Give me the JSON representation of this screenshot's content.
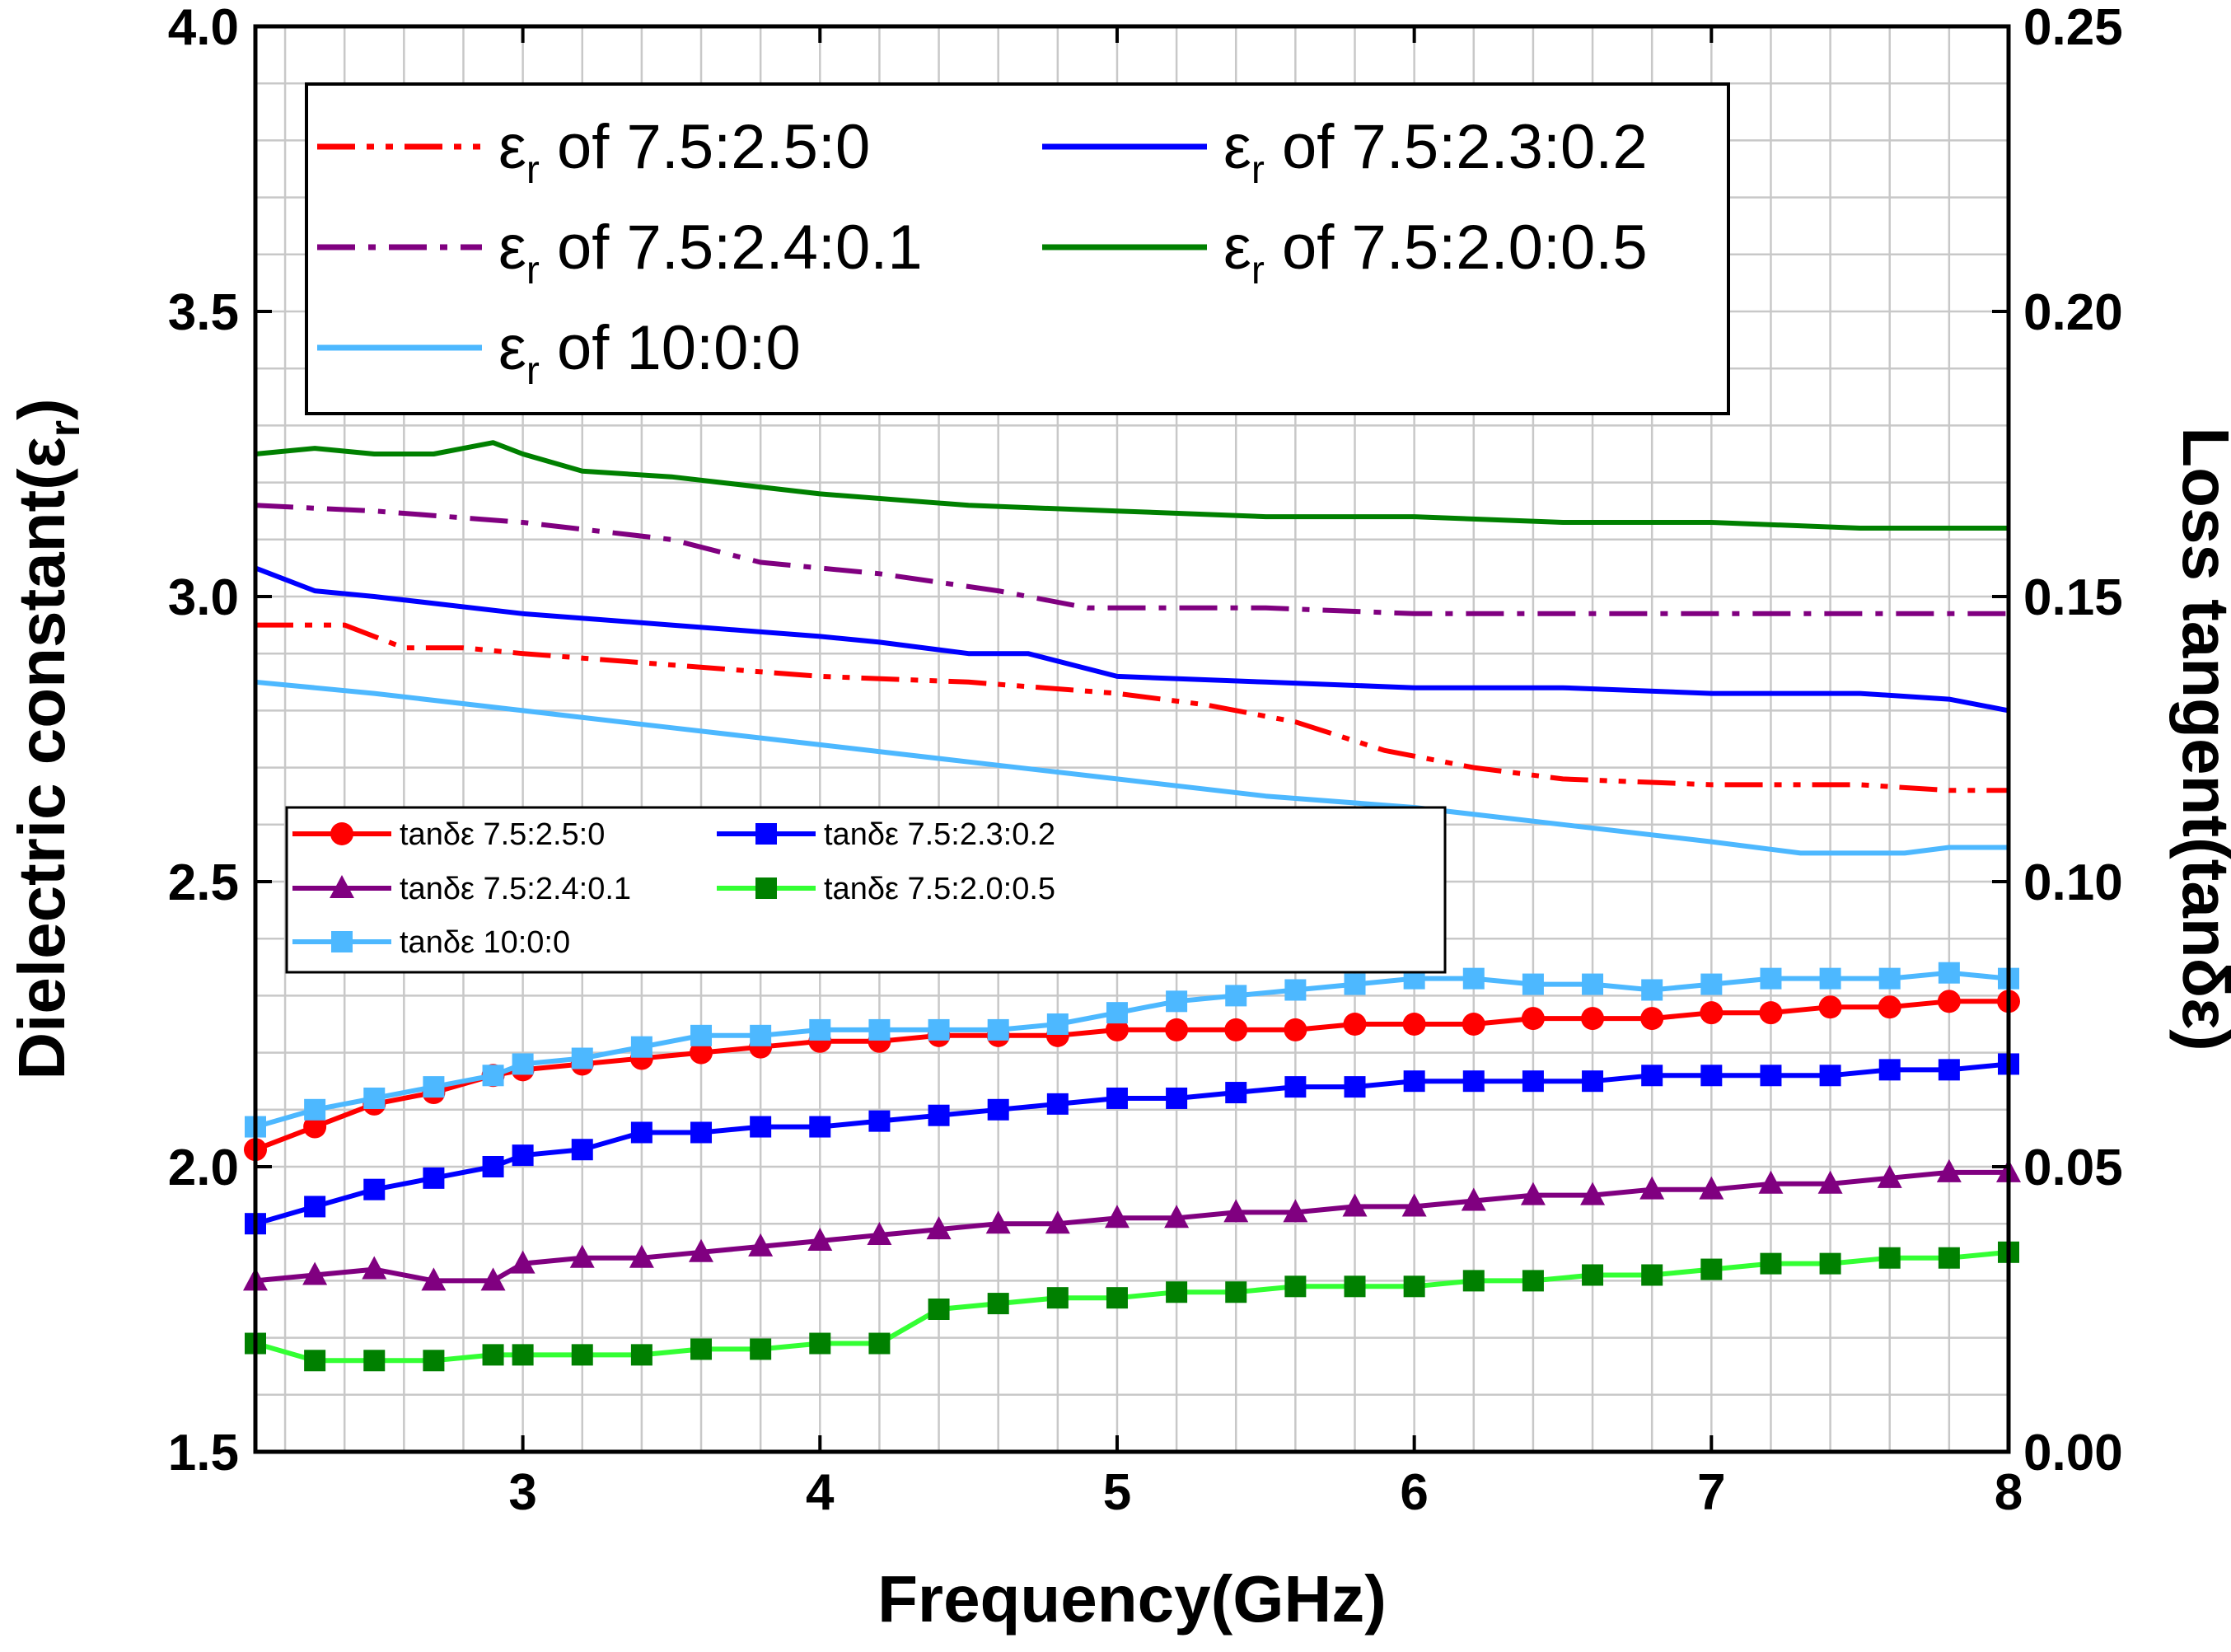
{
  "chart_data": {
    "type": "line",
    "xlabel": "Frequency(GHz)",
    "ylabel": "Dielectric constant(εr)",
    "ylabel_main": "Dielectric constant(ε",
    "ylabel_sub": "r",
    "ylabel_tail": ")",
    "y2label": "Loss tangent(tanδε)",
    "xlim": [
      2.1,
      8
    ],
    "ylim": [
      1.5,
      4.0
    ],
    "y2lim": [
      0.0,
      0.25
    ],
    "x_ticks": [
      3,
      4,
      5,
      6,
      7,
      8
    ],
    "x_tick_labels": [
      "3",
      "4",
      "5",
      "6",
      "7",
      "8"
    ],
    "y_ticks": [
      1.5,
      2.0,
      2.5,
      3.0,
      3.5,
      4.0
    ],
    "y_tick_labels": [
      "1.5",
      "2.0",
      "2.5",
      "3.0",
      "3.5",
      "4.0"
    ],
    "y2_ticks": [
      0.0,
      0.05,
      0.1,
      0.15,
      0.2,
      0.25
    ],
    "y2_tick_labels": [
      "0.00",
      "0.05",
      "0.10",
      "0.15",
      "0.20",
      "0.25"
    ],
    "grid": true,
    "series": [
      {
        "id": "er1",
        "axis": "left",
        "name": "εr of  7.5:2.5:0",
        "legend_pre": "ε",
        "legend_sub": "r",
        "legend_post": " of  7.5:2.5:0",
        "color": "#ff0000",
        "dash": "dashdotdot",
        "marker": "none",
        "x": [
          2.1,
          2.4,
          2.6,
          2.8,
          3.0,
          3.5,
          4.0,
          4.5,
          5.0,
          5.3,
          5.6,
          5.9,
          6.2,
          6.5,
          7.0,
          7.5,
          7.8,
          8.0
        ],
        "y": [
          2.95,
          2.95,
          2.91,
          2.91,
          2.9,
          2.88,
          2.86,
          2.85,
          2.83,
          2.81,
          2.78,
          2.73,
          2.7,
          2.68,
          2.67,
          2.67,
          2.66,
          2.66
        ]
      },
      {
        "id": "er2",
        "axis": "left",
        "name": "εr of 7.5:2.3:0.2",
        "legend_pre": "ε",
        "legend_sub": "r",
        "legend_post": " of 7.5:2.3:0.2",
        "color": "#0000ff",
        "dash": "solid",
        "marker": "none",
        "x": [
          2.1,
          2.3,
          2.5,
          3.0,
          3.5,
          4.0,
          4.2,
          4.5,
          4.7,
          5.0,
          5.5,
          6.0,
          6.5,
          7.0,
          7.5,
          7.8,
          8.0
        ],
        "y": [
          3.05,
          3.01,
          3.0,
          2.97,
          2.95,
          2.93,
          2.92,
          2.9,
          2.9,
          2.86,
          2.85,
          2.84,
          2.84,
          2.83,
          2.83,
          2.82,
          2.8
        ]
      },
      {
        "id": "er3",
        "axis": "left",
        "name": "εr of  7.5:2.4:0.1",
        "legend_pre": "ε",
        "legend_sub": "r",
        "legend_post": " of  7.5:2.4:0.1",
        "color": "#800080",
        "dash": "dashdot",
        "marker": "none",
        "x": [
          2.1,
          2.5,
          3.0,
          3.5,
          3.8,
          4.2,
          4.6,
          4.9,
          5.5,
          6.0,
          6.5,
          7.0,
          7.5,
          8.0
        ],
        "y": [
          3.16,
          3.15,
          3.13,
          3.1,
          3.06,
          3.04,
          3.01,
          2.98,
          2.98,
          2.97,
          2.97,
          2.97,
          2.97,
          2.97
        ]
      },
      {
        "id": "er4",
        "axis": "left",
        "name": "εr of 7.5:2.0:0.5",
        "legend_pre": "ε",
        "legend_sub": "r",
        "legend_post": " of 7.5:2.0:0.5",
        "color": "#008000",
        "dash": "solid",
        "marker": "none",
        "x": [
          2.1,
          2.3,
          2.5,
          2.7,
          2.9,
          3.0,
          3.2,
          3.5,
          4.0,
          4.5,
          5.0,
          5.5,
          6.0,
          6.5,
          7.0,
          7.5,
          8.0
        ],
        "y": [
          3.25,
          3.26,
          3.25,
          3.25,
          3.27,
          3.25,
          3.22,
          3.21,
          3.18,
          3.16,
          3.15,
          3.14,
          3.14,
          3.13,
          3.13,
          3.12,
          3.12
        ]
      },
      {
        "id": "er5",
        "axis": "left",
        "name": "εr of  10:0:0",
        "legend_pre": "ε",
        "legend_sub": "r",
        "legend_post": " of  10:0:0",
        "color": "#4db8ff",
        "dash": "solid",
        "marker": "none",
        "x": [
          2.1,
          2.5,
          3.0,
          3.5,
          4.0,
          4.5,
          5.0,
          5.5,
          6.0,
          6.5,
          7.0,
          7.3,
          7.5,
          7.65,
          7.8,
          8.0
        ],
        "y": [
          2.85,
          2.83,
          2.8,
          2.77,
          2.74,
          2.71,
          2.68,
          2.65,
          2.63,
          2.6,
          2.57,
          2.55,
          2.55,
          2.55,
          2.56,
          2.56
        ]
      },
      {
        "id": "tan1",
        "axis": "right",
        "name": "tanδε 7.5:2.5:0",
        "color": "#ff0000",
        "dash": "solid",
        "marker": "circle",
        "x": [
          2.1,
          2.3,
          2.5,
          2.7,
          2.9,
          3.0,
          3.2,
          3.4,
          3.6,
          3.8,
          4.0,
          4.2,
          4.4,
          4.6,
          4.8,
          5.0,
          5.2,
          5.4,
          5.6,
          5.8,
          6.0,
          6.2,
          6.4,
          6.6,
          6.8,
          7.0,
          7.2,
          7.4,
          7.6,
          7.8,
          8.0
        ],
        "y": [
          0.053,
          0.057,
          0.061,
          0.063,
          0.066,
          0.067,
          0.068,
          0.069,
          0.07,
          0.071,
          0.072,
          0.072,
          0.073,
          0.073,
          0.073,
          0.074,
          0.074,
          0.074,
          0.074,
          0.075,
          0.075,
          0.075,
          0.076,
          0.076,
          0.076,
          0.077,
          0.077,
          0.078,
          0.078,
          0.079,
          0.079
        ]
      },
      {
        "id": "tan2",
        "axis": "right",
        "name": "tanδε 7.5:2.3:0.2",
        "color": "#0000ff",
        "dash": "solid",
        "marker": "square",
        "x": [
          2.1,
          2.3,
          2.5,
          2.7,
          2.9,
          3.0,
          3.2,
          3.4,
          3.6,
          3.8,
          4.0,
          4.2,
          4.4,
          4.6,
          4.8,
          5.0,
          5.2,
          5.4,
          5.6,
          5.8,
          6.0,
          6.2,
          6.4,
          6.6,
          6.8,
          7.0,
          7.2,
          7.4,
          7.6,
          7.8,
          8.0
        ],
        "y": [
          0.04,
          0.043,
          0.046,
          0.048,
          0.05,
          0.052,
          0.053,
          0.056,
          0.056,
          0.057,
          0.057,
          0.058,
          0.059,
          0.06,
          0.061,
          0.062,
          0.062,
          0.063,
          0.064,
          0.064,
          0.065,
          0.065,
          0.065,
          0.065,
          0.066,
          0.066,
          0.066,
          0.066,
          0.067,
          0.067,
          0.068
        ]
      },
      {
        "id": "tan3",
        "axis": "right",
        "name": "tanδε 7.5:2.4:0.1",
        "color": "#800080",
        "dash": "solid",
        "marker": "triangle",
        "x": [
          2.1,
          2.3,
          2.5,
          2.7,
          2.9,
          3.0,
          3.2,
          3.4,
          3.6,
          3.8,
          4.0,
          4.2,
          4.4,
          4.6,
          4.8,
          5.0,
          5.2,
          5.4,
          5.6,
          5.8,
          6.0,
          6.2,
          6.4,
          6.6,
          6.8,
          7.0,
          7.2,
          7.4,
          7.6,
          7.8,
          8.0
        ],
        "y": [
          0.03,
          0.031,
          0.032,
          0.03,
          0.03,
          0.033,
          0.034,
          0.034,
          0.035,
          0.036,
          0.037,
          0.038,
          0.039,
          0.04,
          0.04,
          0.041,
          0.041,
          0.042,
          0.042,
          0.043,
          0.043,
          0.044,
          0.045,
          0.045,
          0.046,
          0.046,
          0.047,
          0.047,
          0.048,
          0.049,
          0.049
        ]
      },
      {
        "id": "tan4",
        "axis": "right",
        "name": "tanδε 7.5:2.0:0.5",
        "color": "#33ff33",
        "marker_color": "#008000",
        "dash": "solid",
        "marker": "square",
        "x": [
          2.1,
          2.3,
          2.5,
          2.7,
          2.9,
          3.0,
          3.2,
          3.4,
          3.6,
          3.8,
          4.0,
          4.2,
          4.4,
          4.6,
          4.8,
          5.0,
          5.2,
          5.4,
          5.6,
          5.8,
          6.0,
          6.2,
          6.4,
          6.6,
          6.8,
          7.0,
          7.2,
          7.4,
          7.6,
          7.8,
          8.0
        ],
        "y": [
          0.019,
          0.016,
          0.016,
          0.016,
          0.017,
          0.017,
          0.017,
          0.017,
          0.018,
          0.018,
          0.019,
          0.019,
          0.025,
          0.026,
          0.027,
          0.027,
          0.028,
          0.028,
          0.029,
          0.029,
          0.029,
          0.03,
          0.03,
          0.031,
          0.031,
          0.032,
          0.033,
          0.033,
          0.034,
          0.034,
          0.035
        ]
      },
      {
        "id": "tan5",
        "axis": "right",
        "name": "tanδε 10:0:0",
        "color": "#4db8ff",
        "dash": "solid",
        "marker": "square",
        "x": [
          2.1,
          2.3,
          2.5,
          2.7,
          2.9,
          3.0,
          3.2,
          3.4,
          3.6,
          3.8,
          4.0,
          4.2,
          4.4,
          4.6,
          4.8,
          5.0,
          5.2,
          5.4,
          5.6,
          5.8,
          6.0,
          6.2,
          6.4,
          6.6,
          6.8,
          7.0,
          7.2,
          7.4,
          7.6,
          7.8,
          8.0
        ],
        "y": [
          0.057,
          0.06,
          0.062,
          0.064,
          0.066,
          0.068,
          0.069,
          0.071,
          0.073,
          0.073,
          0.074,
          0.074,
          0.074,
          0.074,
          0.075,
          0.077,
          0.079,
          0.08,
          0.081,
          0.082,
          0.083,
          0.083,
          0.082,
          0.082,
          0.081,
          0.082,
          0.083,
          0.083,
          0.083,
          0.084,
          0.083
        ]
      }
    ],
    "legend_top": [
      "er1",
      "er2",
      "er3",
      "er4",
      "er5"
    ],
    "legend_bottom": [
      "tan1",
      "tan2",
      "tan3",
      "tan4",
      "tan5"
    ]
  }
}
